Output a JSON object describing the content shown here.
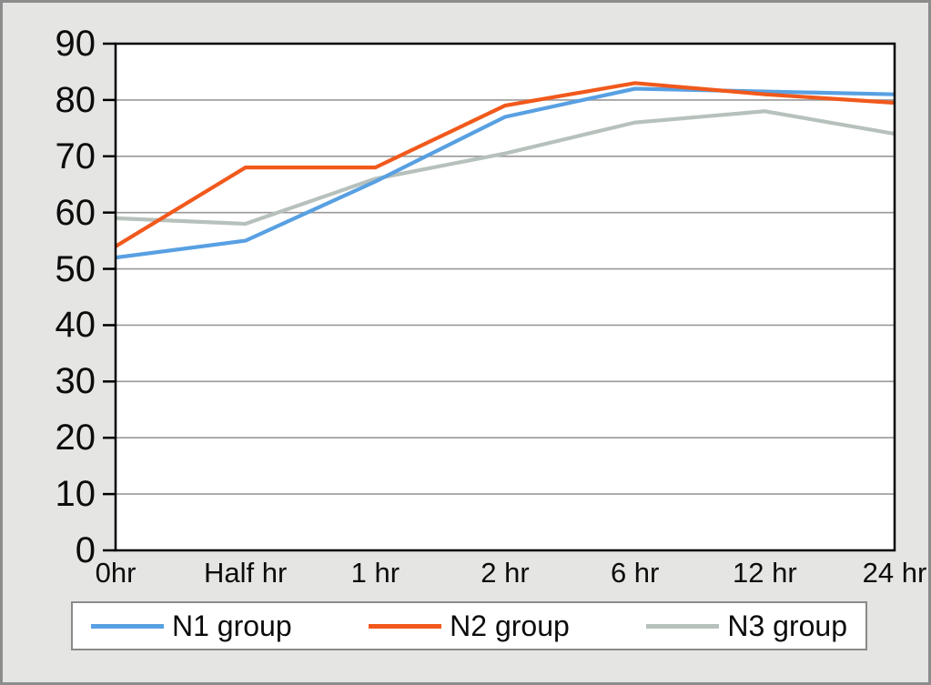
{
  "chart_data": {
    "type": "line",
    "categories": [
      "0hr",
      "Half hr",
      "1 hr",
      "2 hr",
      "6 hr",
      "12 hr",
      "24 hr"
    ],
    "series": [
      {
        "name": "N1 group",
        "color": "#58A0E2",
        "values": [
          52,
          55,
          65.5,
          77,
          82,
          81.5,
          81
        ]
      },
      {
        "name": "N2 group",
        "color": "#F1591C",
        "values": [
          54,
          68,
          68,
          79,
          83,
          81,
          79.5
        ]
      },
      {
        "name": "N3 group",
        "color": "#B7C1BB",
        "values": [
          59,
          58,
          66,
          70.5,
          76,
          78,
          74
        ]
      }
    ],
    "title": "",
    "xlabel": "",
    "ylabel": "",
    "yticks": [
      0,
      10,
      20,
      30,
      40,
      50,
      60,
      70,
      80,
      90
    ],
    "ylim": [
      0,
      90
    ],
    "grid": true,
    "legend_position": "bottom"
  },
  "colors": {
    "background": "#E5E5E4",
    "plot_background": "#FFFFFF",
    "outer_border": "#8C8C8C",
    "axis": "#000000",
    "gridline": "#999999",
    "legend_border": "#8A8A8A",
    "text": "#0C0C0C"
  }
}
